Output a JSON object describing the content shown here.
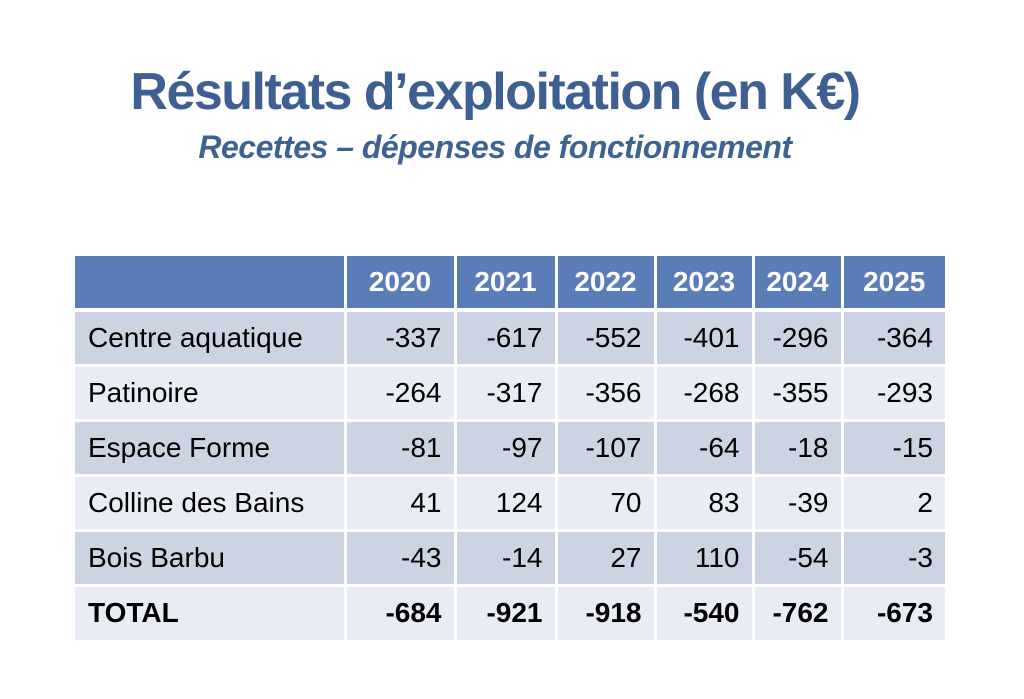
{
  "slide": {
    "title": "Résultats d’exploitation (en K€)",
    "subtitle": "Recettes – dépenses de fonctionnement"
  },
  "colors": {
    "title": "#3d5f91",
    "subtitle": "#3d6394",
    "header_bg": "#5a7db8",
    "header_text": "#ffffff",
    "band_dark": "#ccd3e3",
    "band_light": "#e9ecf4",
    "grid": "#ffffff",
    "cell_text": "#000000"
  },
  "chart_data": {
    "type": "table",
    "title": "Résultats d’exploitation (en K€)",
    "subtitle": "Recettes – dépenses de fonctionnement",
    "columns": [
      "2020",
      "2021",
      "2022",
      "2023",
      "2024",
      "2025"
    ],
    "rows": [
      {
        "label": "Centre aquatique",
        "values": [
          -337,
          -617,
          -552,
          -401,
          -296,
          -364
        ]
      },
      {
        "label": "Patinoire",
        "values": [
          -264,
          -317,
          -356,
          -268,
          -355,
          -293
        ]
      },
      {
        "label": "Espace Forme",
        "values": [
          -81,
          -97,
          -107,
          -64,
          -18,
          -15
        ]
      },
      {
        "label": "Colline des Bains",
        "values": [
          41,
          124,
          70,
          83,
          -39,
          2
        ]
      },
      {
        "label": "Bois Barbu",
        "values": [
          -43,
          -14,
          27,
          110,
          -54,
          -3
        ]
      }
    ],
    "total_row": {
      "label": "TOTAL",
      "values": [
        -684,
        -921,
        -918,
        -540,
        -762,
        -673
      ]
    }
  }
}
